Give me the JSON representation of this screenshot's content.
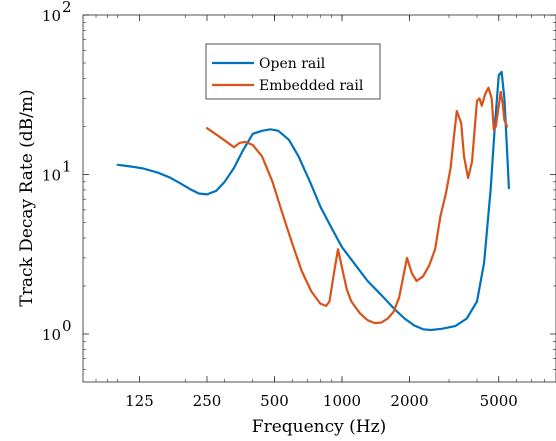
{
  "chart_data": {
    "type": "line",
    "title": "",
    "xlabel": "Frequency (Hz)",
    "ylabel": "Track Decay Rate (dB/m)",
    "x_scale": "log",
    "y_scale": "log",
    "xlim": [
      70,
      9000
    ],
    "ylim": [
      0.5,
      100
    ],
    "x_ticks": [
      {
        "value": 125,
        "label": "125"
      },
      {
        "value": 250,
        "label": "250"
      },
      {
        "value": 500,
        "label": "500"
      },
      {
        "value": 1000,
        "label": "1000"
      },
      {
        "value": 2000,
        "label": "2000"
      },
      {
        "value": 5000,
        "label": "5000"
      }
    ],
    "y_ticks": [
      {
        "value": 1,
        "base": "10",
        "exp": "0"
      },
      {
        "value": 10,
        "base": "10",
        "exp": "1"
      },
      {
        "value": 100,
        "base": "10",
        "exp": "2"
      }
    ],
    "grid": false,
    "legend_position": "upper-center",
    "series": [
      {
        "name": "Open rail",
        "color": "#0072BD",
        "points": [
          [
            100,
            11.5
          ],
          [
            115,
            11.2
          ],
          [
            130,
            10.9
          ],
          [
            150,
            10.3
          ],
          [
            170,
            9.6
          ],
          [
            190,
            8.8
          ],
          [
            210,
            8.1
          ],
          [
            230,
            7.6
          ],
          [
            250,
            7.5
          ],
          [
            275,
            7.9
          ],
          [
            300,
            9.0
          ],
          [
            330,
            11.0
          ],
          [
            360,
            14.0
          ],
          [
            400,
            18.0
          ],
          [
            440,
            18.8
          ],
          [
            480,
            19.2
          ],
          [
            520,
            18.8
          ],
          [
            580,
            16.5
          ],
          [
            640,
            13.0
          ],
          [
            720,
            9.0
          ],
          [
            800,
            6.3
          ],
          [
            900,
            4.6
          ],
          [
            1000,
            3.5
          ],
          [
            1150,
            2.7
          ],
          [
            1300,
            2.15
          ],
          [
            1500,
            1.75
          ],
          [
            1700,
            1.45
          ],
          [
            1900,
            1.25
          ],
          [
            2100,
            1.13
          ],
          [
            2300,
            1.07
          ],
          [
            2500,
            1.06
          ],
          [
            2800,
            1.08
          ],
          [
            3200,
            1.12
          ],
          [
            3600,
            1.25
          ],
          [
            4000,
            1.6
          ],
          [
            4300,
            2.8
          ],
          [
            4600,
            8.0
          ],
          [
            4800,
            20.0
          ],
          [
            5000,
            42.0
          ],
          [
            5150,
            44.0
          ],
          [
            5300,
            30.0
          ],
          [
            5450,
            14.0
          ],
          [
            5550,
            8.2
          ]
        ]
      },
      {
        "name": "Embedded rail",
        "color": "#D95319",
        "points": [
          [
            250,
            19.5
          ],
          [
            280,
            17.5
          ],
          [
            310,
            15.8
          ],
          [
            330,
            14.8
          ],
          [
            350,
            15.8
          ],
          [
            370,
            16.0
          ],
          [
            400,
            15.3
          ],
          [
            440,
            13.0
          ],
          [
            490,
            9.0
          ],
          [
            540,
            5.8
          ],
          [
            600,
            3.7
          ],
          [
            660,
            2.5
          ],
          [
            730,
            1.85
          ],
          [
            800,
            1.55
          ],
          [
            850,
            1.5
          ],
          [
            880,
            1.6
          ],
          [
            920,
            2.4
          ],
          [
            960,
            3.4
          ],
          [
            1000,
            2.6
          ],
          [
            1050,
            1.9
          ],
          [
            1100,
            1.6
          ],
          [
            1200,
            1.35
          ],
          [
            1300,
            1.22
          ],
          [
            1400,
            1.17
          ],
          [
            1500,
            1.18
          ],
          [
            1600,
            1.25
          ],
          [
            1700,
            1.38
          ],
          [
            1800,
            1.7
          ],
          [
            1900,
            2.5
          ],
          [
            1950,
            3.0
          ],
          [
            2050,
            2.4
          ],
          [
            2150,
            2.15
          ],
          [
            2300,
            2.3
          ],
          [
            2450,
            2.7
          ],
          [
            2600,
            3.4
          ],
          [
            2750,
            5.5
          ],
          [
            2900,
            7.5
          ],
          [
            3050,
            11.0
          ],
          [
            3150,
            17.0
          ],
          [
            3250,
            25.0
          ],
          [
            3400,
            21.0
          ],
          [
            3500,
            13.0
          ],
          [
            3650,
            9.5
          ],
          [
            3800,
            12.0
          ],
          [
            3900,
            19.0
          ],
          [
            4000,
            29.0
          ],
          [
            4100,
            30.0
          ],
          [
            4200,
            27.0
          ],
          [
            4350,
            32.0
          ],
          [
            4500,
            35.0
          ],
          [
            4650,
            30.0
          ],
          [
            4750,
            19.0
          ],
          [
            4850,
            20.0
          ],
          [
            5000,
            27.0
          ],
          [
            5100,
            33.0
          ],
          [
            5200,
            28.0
          ],
          [
            5300,
            22.0
          ],
          [
            5450,
            20.0
          ]
        ]
      }
    ]
  }
}
